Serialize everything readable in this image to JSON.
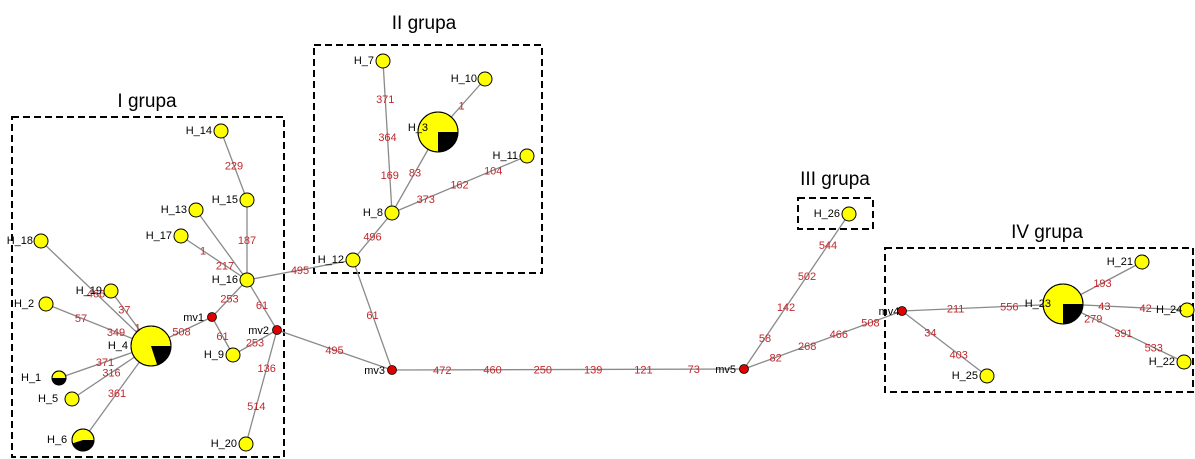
{
  "colors": {
    "haplotype": "#ffff00",
    "shared_fraction": "#000000",
    "median_vector": "#e00000",
    "mutation_label": "#c0282d",
    "edge": "#8a8a8a"
  },
  "groups": [
    {
      "id": "g1",
      "label": "I grupa"
    },
    {
      "id": "g2",
      "label": "II grupa"
    },
    {
      "id": "g3",
      "label": "III grupa"
    },
    {
      "id": "g4",
      "label": "IV grupa"
    }
  ],
  "haplotypes": [
    {
      "id": "H_1",
      "label": "H_1",
      "size": "small",
      "black_fraction": 0.5
    },
    {
      "id": "H_2",
      "label": "H_2",
      "size": "small",
      "black_fraction": 0
    },
    {
      "id": "H_3",
      "label": "H_3",
      "size": "large",
      "black_fraction": 0.25
    },
    {
      "id": "H_4",
      "label": "H_4",
      "size": "large",
      "black_fraction": 0.2
    },
    {
      "id": "H_5",
      "label": "H_5",
      "size": "small",
      "black_fraction": 0
    },
    {
      "id": "H_6",
      "label": "H_6",
      "size": "medium",
      "black_fraction": 0.45
    },
    {
      "id": "H_7",
      "label": "H_7",
      "size": "small",
      "black_fraction": 0
    },
    {
      "id": "H_8",
      "label": "H_8",
      "size": "small",
      "black_fraction": 0
    },
    {
      "id": "H_9",
      "label": "H_9",
      "size": "small",
      "black_fraction": 0
    },
    {
      "id": "H_10",
      "label": "H_10",
      "size": "small",
      "black_fraction": 0
    },
    {
      "id": "H_11",
      "label": "H_11",
      "size": "small",
      "black_fraction": 0
    },
    {
      "id": "H_12",
      "label": "H_12",
      "size": "small",
      "black_fraction": 0
    },
    {
      "id": "H_13",
      "label": "H_13",
      "size": "small",
      "black_fraction": 0
    },
    {
      "id": "H_14",
      "label": "H_14",
      "size": "small",
      "black_fraction": 0
    },
    {
      "id": "H_15",
      "label": "H_15",
      "size": "small",
      "black_fraction": 0
    },
    {
      "id": "H_16",
      "label": "H_16",
      "size": "small",
      "black_fraction": 0
    },
    {
      "id": "H_17",
      "label": "H_17",
      "size": "small",
      "black_fraction": 0
    },
    {
      "id": "H_18",
      "label": "H_18",
      "size": "small",
      "black_fraction": 0
    },
    {
      "id": "H_19",
      "label": "H_19",
      "size": "small",
      "black_fraction": 0
    },
    {
      "id": "H_20",
      "label": "H_20",
      "size": "small",
      "black_fraction": 0
    },
    {
      "id": "H_21",
      "label": "H_21",
      "size": "small",
      "black_fraction": 0
    },
    {
      "id": "H_22",
      "label": "H_22",
      "size": "small",
      "black_fraction": 0
    },
    {
      "id": "H_23",
      "label": "H_23",
      "size": "large",
      "black_fraction": 0.25
    },
    {
      "id": "H_24",
      "label": "H_24",
      "size": "small",
      "black_fraction": 0
    },
    {
      "id": "H_25",
      "label": "H_25",
      "size": "small",
      "black_fraction": 0
    },
    {
      "id": "H_26",
      "label": "H_26",
      "size": "small",
      "black_fraction": 0
    }
  ],
  "median_vectors": [
    {
      "id": "mv1",
      "label": "mv1"
    },
    {
      "id": "mv2",
      "label": "mv2"
    },
    {
      "id": "mv3",
      "label": "mv3"
    },
    {
      "id": "mv4",
      "label": "mv4"
    },
    {
      "id": "mv5",
      "label": "mv5"
    }
  ],
  "links": [
    {
      "from": "H_4",
      "to": "H_18",
      "mutations": [
        "466"
      ]
    },
    {
      "from": "H_4",
      "to": "H_2",
      "mutations": [
        "349",
        "57"
      ]
    },
    {
      "from": "H_4",
      "to": "H_19",
      "mutations": [
        "1",
        "37"
      ]
    },
    {
      "from": "H_4",
      "to": "H_1",
      "mutations": [
        "371"
      ]
    },
    {
      "from": "H_4",
      "to": "H_5",
      "mutations": [
        "316"
      ]
    },
    {
      "from": "H_4",
      "to": "H_6",
      "mutations": [
        "361"
      ]
    },
    {
      "from": "H_4",
      "to": "mv1",
      "mutations": [
        "508"
      ]
    },
    {
      "from": "mv1",
      "to": "H_9",
      "mutations": [
        "61"
      ]
    },
    {
      "from": "mv1",
      "to": "H_16",
      "mutations": [
        "253"
      ]
    },
    {
      "from": "H_9",
      "to": "mv2",
      "mutations": [
        "253"
      ]
    },
    {
      "from": "H_16",
      "to": "mv2",
      "mutations": [
        "61"
      ]
    },
    {
      "from": "H_16",
      "to": "H_17",
      "mutations": [
        "217",
        "1"
      ]
    },
    {
      "from": "H_16",
      "to": "H_13",
      "mutations": []
    },
    {
      "from": "H_16",
      "to": "H_15",
      "mutations": [
        "187"
      ]
    },
    {
      "from": "H_15",
      "to": "H_14",
      "mutations": [
        "229"
      ]
    },
    {
      "from": "mv2",
      "to": "H_20",
      "mutations": [
        "136",
        "514"
      ]
    },
    {
      "from": "H_16",
      "to": "H_12",
      "mutations": [
        "495"
      ]
    },
    {
      "from": "mv2",
      "to": "mv3",
      "mutations": [
        "495"
      ]
    },
    {
      "from": "H_12",
      "to": "mv3",
      "mutations": [
        "61"
      ]
    },
    {
      "from": "H_12",
      "to": "H_8",
      "mutations": [
        "496"
      ]
    },
    {
      "from": "H_8",
      "to": "H_7",
      "mutations": [
        "169",
        "364",
        "371"
      ]
    },
    {
      "from": "H_8",
      "to": "H_3",
      "mutations": [
        "83"
      ]
    },
    {
      "from": "H_3",
      "to": "H_10",
      "mutations": [
        "1"
      ]
    },
    {
      "from": "H_8",
      "to": "H_11",
      "mutations": [
        "373",
        "162",
        "104"
      ]
    },
    {
      "from": "mv3",
      "to": "mv5",
      "mutations": [
        "472",
        "460",
        "250",
        "139",
        "121",
        "73"
      ]
    },
    {
      "from": "mv5",
      "to": "H_26",
      "mutations": [
        "58",
        "142",
        "502",
        "544"
      ]
    },
    {
      "from": "mv5",
      "to": "mv4",
      "mutations": [
        "82",
        "268",
        "466",
        "508"
      ]
    },
    {
      "from": "mv4",
      "to": "H_23",
      "mutations": [
        "211",
        "556"
      ]
    },
    {
      "from": "mv4",
      "to": "H_25",
      "mutations": [
        "34",
        "403"
      ]
    },
    {
      "from": "H_23",
      "to": "H_21",
      "mutations": [
        "193"
      ]
    },
    {
      "from": "H_23",
      "to": "H_24",
      "mutations": [
        "43",
        "42"
      ]
    },
    {
      "from": "H_23",
      "to": "H_22",
      "mutations": [
        "279",
        "391",
        "533"
      ]
    }
  ]
}
